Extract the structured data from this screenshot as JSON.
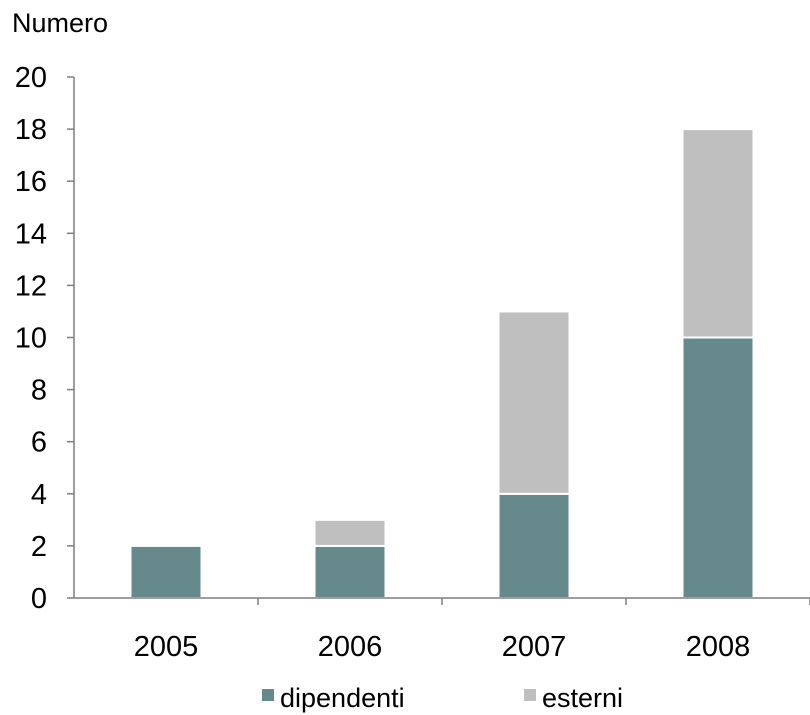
{
  "chart_data": {
    "type": "bar",
    "stacked": true,
    "title": "",
    "xlabel": "",
    "ylabel": "Numero",
    "categories": [
      "2005",
      "2006",
      "2007",
      "2008"
    ],
    "series": [
      {
        "name": "dipendenti",
        "values": [
          2,
          2,
          4,
          10
        ],
        "color": "#668a8c"
      },
      {
        "name": "esterni",
        "values": [
          0,
          1,
          7,
          8
        ],
        "color": "#bfbfbf"
      }
    ],
    "ylim": [
      0,
      20
    ],
    "yticks": [
      0,
      2,
      4,
      6,
      8,
      10,
      12,
      14,
      16,
      18,
      20
    ],
    "grid": false,
    "legend_position": "bottom"
  }
}
